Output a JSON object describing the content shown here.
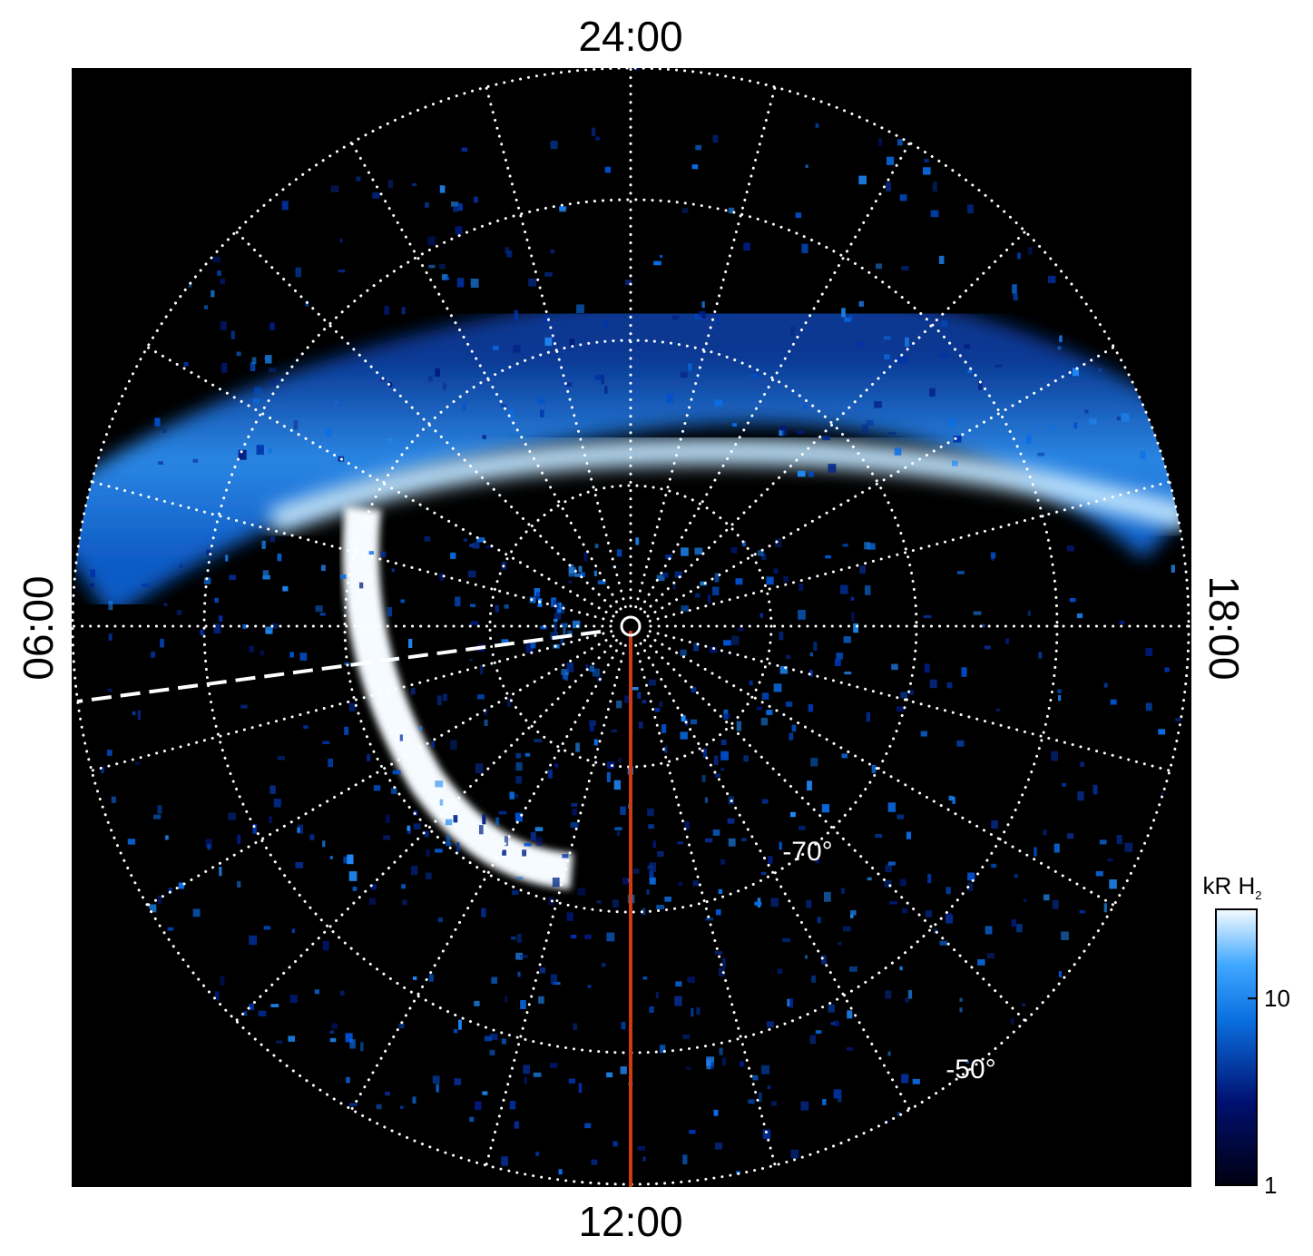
{
  "labels": {
    "top": "24:00",
    "bottom": "12:00",
    "left": "06:00",
    "right": "18:00"
  },
  "latitude_labels": [
    "-70°",
    "-50°"
  ],
  "colorbar": {
    "label": "kR H",
    "label_subscript": "2",
    "scale": "log",
    "range": [
      1,
      30
    ],
    "ticks": [
      1,
      10
    ]
  }
}
